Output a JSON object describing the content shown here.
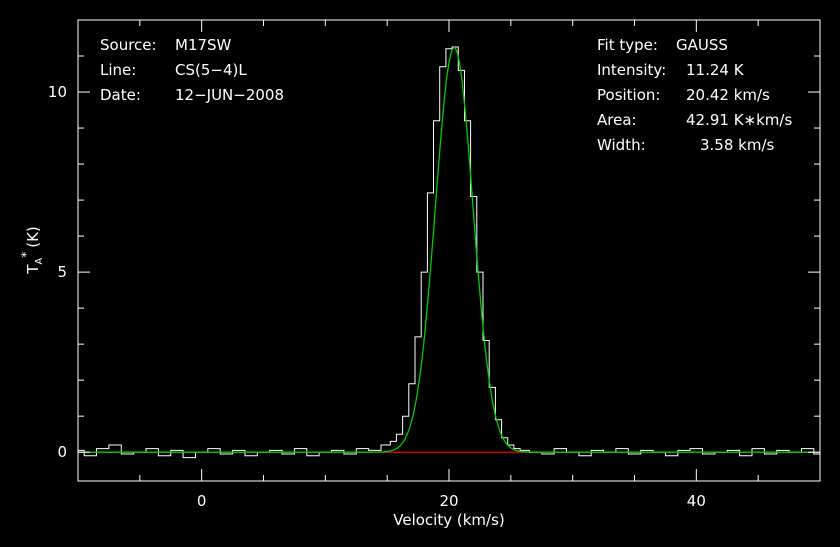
{
  "chart_data": {
    "type": "line",
    "title": "",
    "xlabel": "Velocity (km/s)",
    "ylabel": "(K)",
    "ylabel_symbol": "T",
    "ylabel_sub": "A",
    "ylabel_sup": "*",
    "xlim": [
      -10,
      50
    ],
    "ylim": [
      -0.8,
      12.0
    ],
    "xticks": [
      0,
      20,
      40
    ],
    "xtick_labels": [
      "0",
      "20",
      "40"
    ],
    "yticks": [
      0,
      5,
      10
    ],
    "ytick_labels": [
      "0",
      "5",
      "10"
    ],
    "grid": false,
    "legend": "none",
    "colors": {
      "background": "#000000",
      "frame": "#ffffff",
      "text": "#ffffff",
      "spectrum": "#ffffff",
      "fit": "#00cc00",
      "baseline": "#cc0000"
    },
    "info_left": [
      {
        "label": "Source:",
        "value": "M17SW"
      },
      {
        "label": "Line:",
        "value": "CS(5−4)L"
      },
      {
        "label": "Date:",
        "value": "12−JUN−2008"
      }
    ],
    "info_right": [
      {
        "label": "Fit type:",
        "value": "GAUSS"
      },
      {
        "label": "Intensity:",
        "value": "11.24 K"
      },
      {
        "label": "Position:",
        "value": "20.42 km/s"
      },
      {
        "label": "Area:",
        "value": "42.91 K∗km/s"
      },
      {
        "label": "Width:",
        "value": "3.58 km/s"
      }
    ],
    "fit": {
      "amplitude": 11.24,
      "center": 20.42,
      "fwhm": 3.58,
      "area": 42.91
    },
    "series": [
      {
        "role": "spectrum",
        "x": [
          -10.0,
          -9.0,
          -8.0,
          -7.0,
          -6.0,
          -5.0,
          -4.0,
          -3.0,
          -2.0,
          -1.0,
          0.0,
          1.0,
          2.0,
          3.0,
          4.0,
          5.0,
          6.0,
          7.0,
          8.0,
          9.0,
          10.0,
          11.0,
          12.0,
          13.0,
          14.0,
          15.0,
          15.5,
          16.0,
          16.5,
          17.0,
          17.5,
          18.0,
          18.5,
          19.0,
          19.5,
          20.0,
          20.5,
          21.0,
          21.5,
          22.0,
          22.5,
          23.0,
          23.5,
          24.0,
          24.5,
          25.0,
          25.5,
          26.0,
          27.0,
          28.0,
          29.0,
          30.0,
          31.0,
          32.0,
          33.0,
          34.0,
          35.0,
          36.0,
          37.0,
          38.0,
          39.0,
          40.0,
          41.0,
          42.0,
          43.0,
          44.0,
          45.0,
          46.0,
          47.0,
          48.0,
          49.0,
          50.0
        ],
        "y": [
          0.05,
          -0.1,
          0.1,
          0.2,
          -0.05,
          0.0,
          0.1,
          -0.1,
          0.05,
          -0.15,
          0.0,
          0.1,
          -0.05,
          0.05,
          -0.1,
          0.0,
          0.05,
          -0.05,
          0.1,
          -0.1,
          0.0,
          0.05,
          -0.05,
          0.1,
          0.05,
          0.2,
          0.3,
          0.5,
          1.0,
          1.9,
          3.2,
          5.0,
          7.2,
          9.2,
          10.7,
          11.2,
          11.25,
          10.6,
          9.2,
          7.1,
          5.0,
          3.1,
          1.8,
          0.9,
          0.4,
          0.2,
          0.1,
          0.05,
          0.0,
          -0.05,
          0.1,
          0.0,
          -0.1,
          0.05,
          0.0,
          0.1,
          -0.05,
          0.05,
          0.0,
          -0.1,
          0.05,
          0.1,
          -0.05,
          0.0,
          0.05,
          -0.1,
          0.1,
          -0.05,
          0.05,
          0.0,
          0.1,
          -0.05
        ]
      }
    ]
  }
}
